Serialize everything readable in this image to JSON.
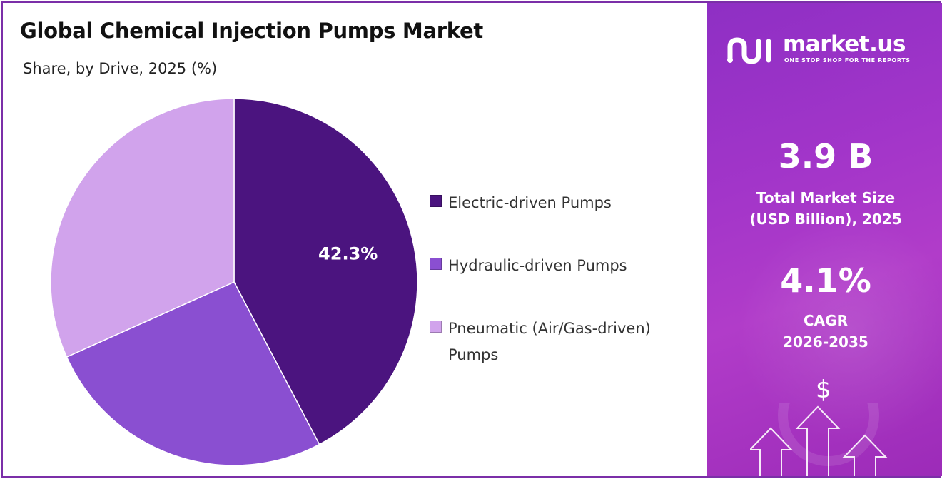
{
  "title": "Global Chemical Injection Pumps Market",
  "subtitle": "Share, by Drive, 2025 (%)",
  "chart_data": {
    "type": "pie",
    "title": "Global Chemical Injection Pumps Market",
    "subtitle": "Share, by Drive, 2025 (%)",
    "categories": [
      "Electric-driven Pumps",
      "Hydraulic-driven Pumps",
      "Pneumatic (Air/Gas-driven) Pumps"
    ],
    "values": [
      42.3,
      26.0,
      31.7
    ],
    "data_labels": [
      "42.3%",
      "",
      ""
    ],
    "colors": [
      "#4b147f",
      "#8a4fd1",
      "#d1a3ec"
    ],
    "legend_position": "right"
  },
  "legend": {
    "items": [
      {
        "label": "Electric-driven Pumps",
        "color": "#4b147f"
      },
      {
        "label": "Hydraulic-driven Pumps",
        "color": "#8a4fd1"
      },
      {
        "label": "Pneumatic (Air/Gas-driven) Pumps",
        "color": "#d1a3ec"
      }
    ]
  },
  "brand": {
    "name": "market.us",
    "tagline": "ONE STOP SHOP FOR THE REPORTS",
    "accent_color": "#a235c9"
  },
  "stats": {
    "market_size_value": "3.9 B",
    "market_size_label_line1": "Total Market Size",
    "market_size_label_line2": "(USD Billion), 2025",
    "cagr_value": "4.1%",
    "cagr_label_line1": "CAGR",
    "cagr_label_line2": "2026-2035"
  },
  "icons": {
    "dollar": "$"
  }
}
